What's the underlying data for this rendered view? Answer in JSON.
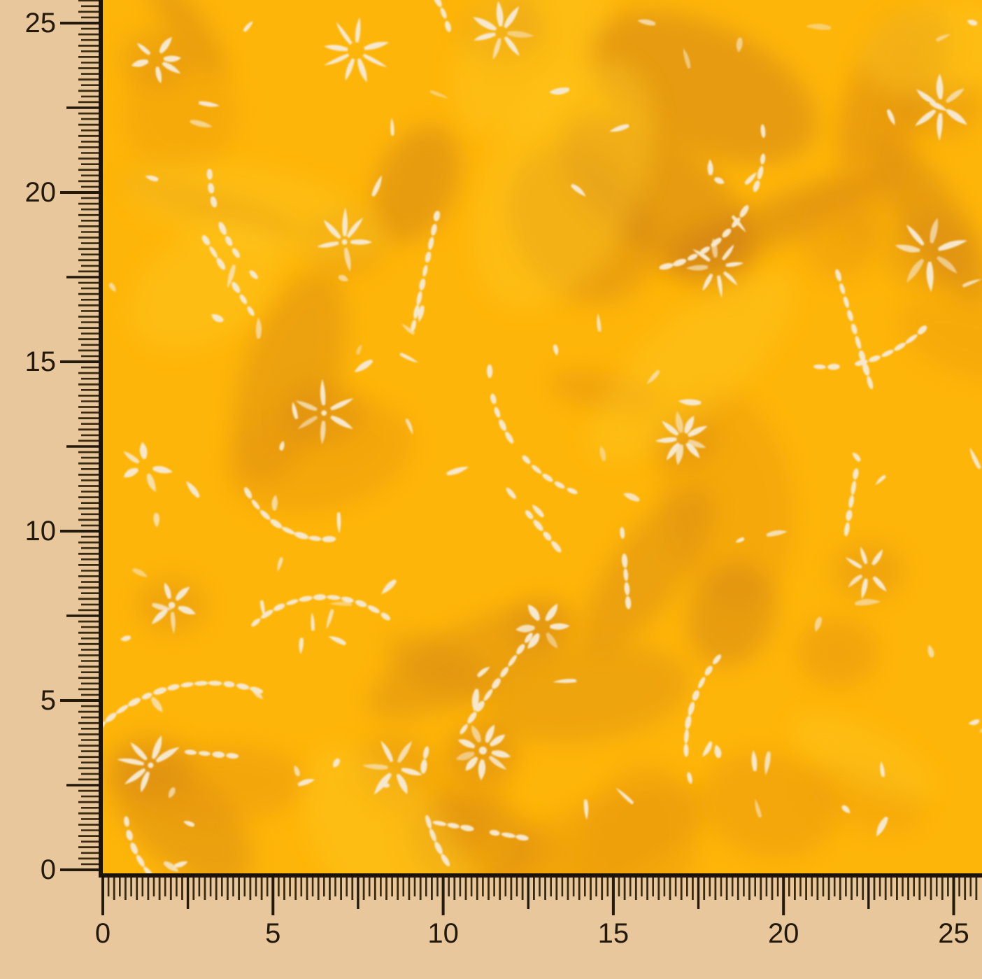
{
  "meta": {
    "description": "Bright yellow-orange batik fabric swatch with cream floral petal motifs, photographed behind measurement rulers along the left and bottom edges"
  },
  "rulers": {
    "left": {
      "labels": [
        "0",
        "5",
        "10",
        "15",
        "20",
        "25"
      ]
    },
    "bottom": {
      "labels": [
        "0",
        "5",
        "10",
        "15",
        "20",
        "25"
      ]
    }
  },
  "colors": {
    "ruler_bg": "#e9c79d",
    "tick": "#38290f",
    "tick_strong": "#241a0c",
    "label_text": "#241a0c",
    "border": "#1c130a",
    "fabric_base": "#feb509",
    "fabric_shadow1": "#e6950f",
    "fabric_shadow2": "#d28414",
    "fabric_shadow3": "#c4761b",
    "fabric_light": "#ffc922",
    "motif_cream": "#f6e8ce"
  },
  "fabric": {
    "pattern": {
      "seed": 11,
      "flower_cols": 5,
      "flower_rows": 5,
      "flower_presence": 0.78,
      "scatter_leaves": 92,
      "dash_arcs": 12,
      "dash_stems": 9,
      "dark_blobs": 34,
      "light_blobs": 8
    }
  }
}
